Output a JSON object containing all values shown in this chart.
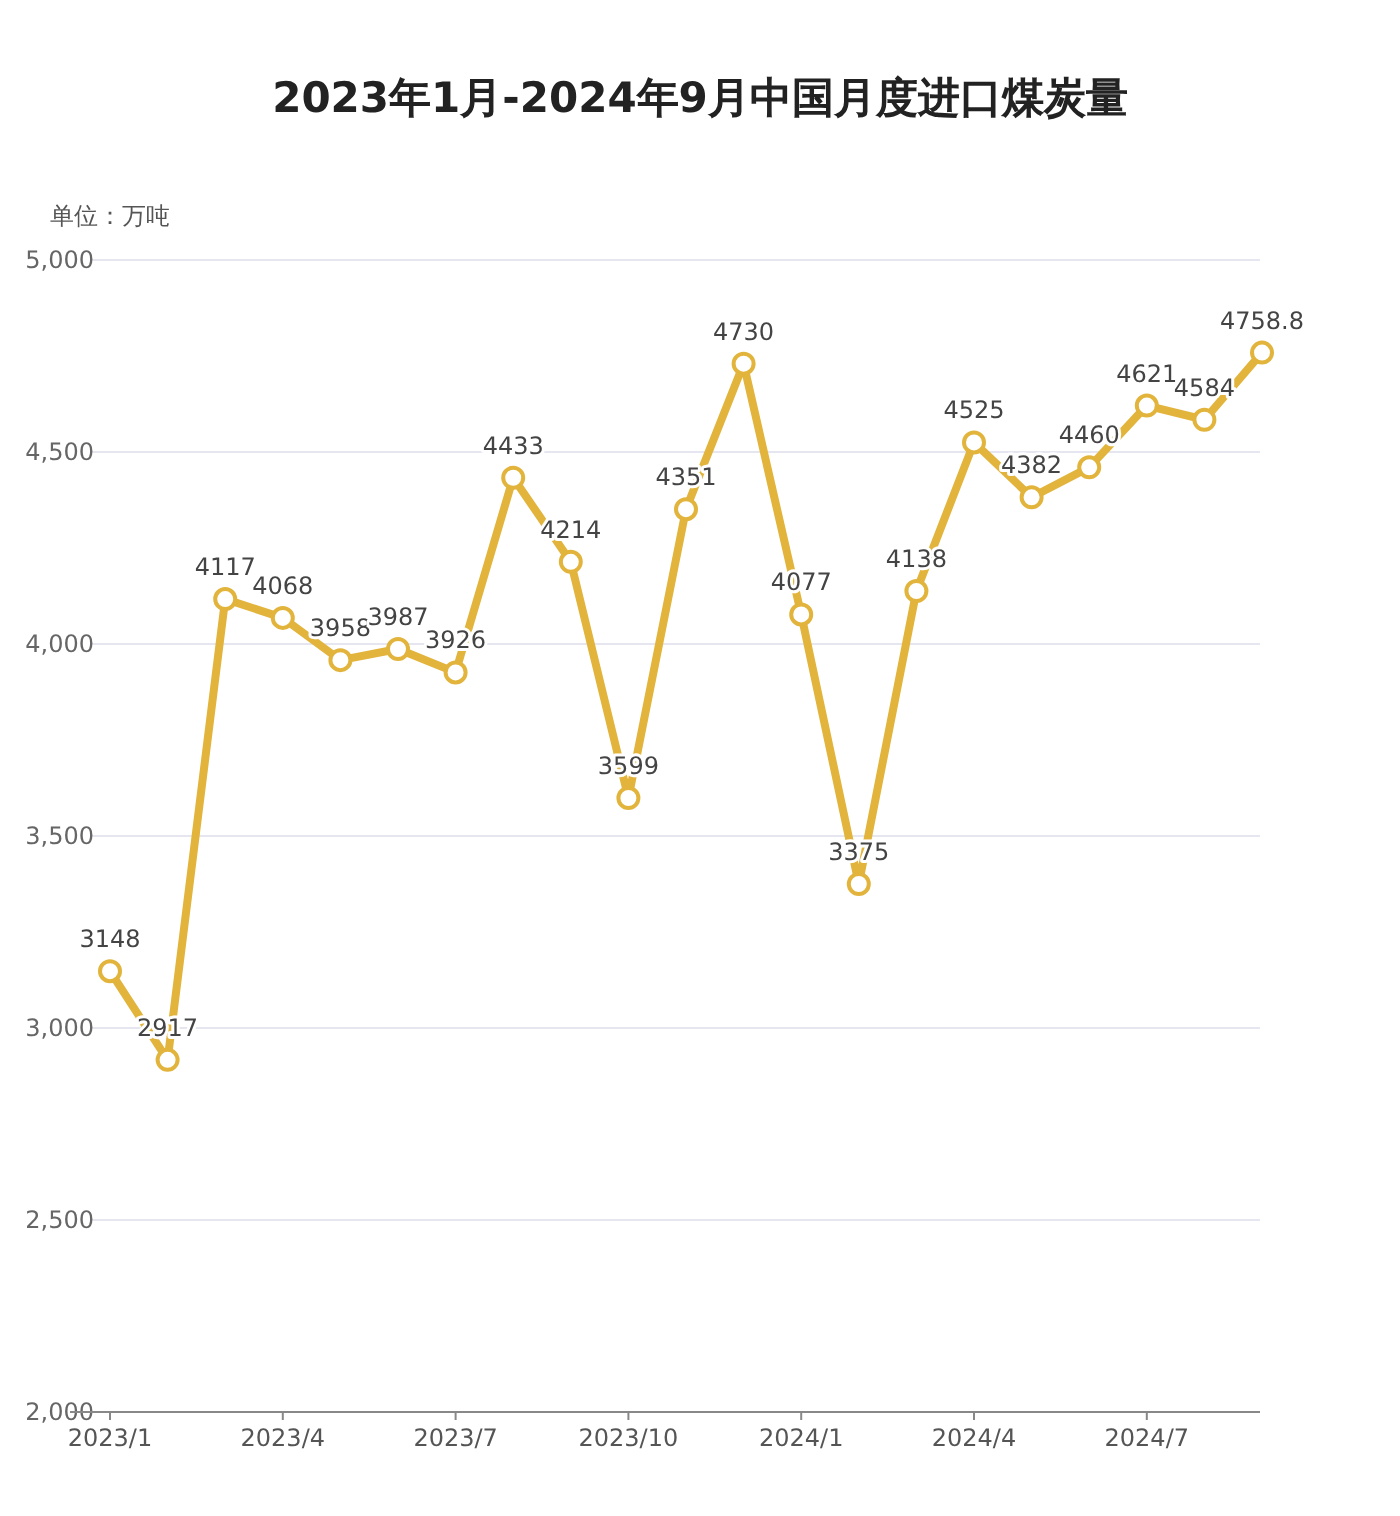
{
  "chart_data": {
    "type": "line",
    "title": "2023年1月-2024年9月中国月度进口煤炭量",
    "ylabel": "单位：万吨",
    "categories": [
      "2023/1",
      null,
      null,
      "2023/4",
      null,
      null,
      "2023/7",
      null,
      null,
      "2023/10",
      null,
      null,
      "2024/1",
      null,
      null,
      "2024/4",
      null,
      null,
      "2024/7",
      null,
      null
    ],
    "values": [
      3148,
      2917,
      4117,
      4068,
      3958,
      3987,
      3926,
      4433,
      4214,
      3599,
      4351,
      4730,
      4077,
      3375,
      4138,
      4525,
      4382,
      4460,
      4621,
      4584,
      4758.8
    ],
    "color": "#e2b43c",
    "ylim": [
      2000,
      5000
    ],
    "yticks": [
      {
        "value": 2000,
        "label": "2,000"
      },
      {
        "value": 2500,
        "label": "2,500"
      },
      {
        "value": 3000,
        "label": "3,000"
      },
      {
        "value": 3500,
        "label": "3,500"
      },
      {
        "value": 4000,
        "label": "4,000"
      },
      {
        "value": 4500,
        "label": "4,500"
      },
      {
        "value": 5000,
        "label": "5,000"
      }
    ],
    "grid": "y",
    "marker": "circle",
    "line_style": "solid",
    "data_labels": true
  }
}
